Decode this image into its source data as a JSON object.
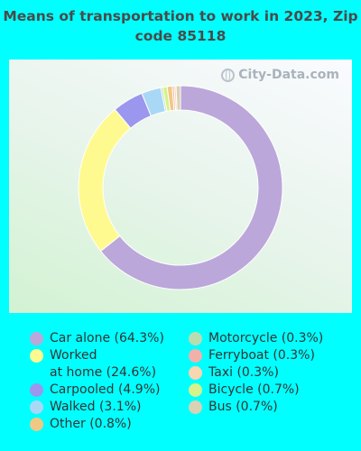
{
  "title": "Means of transportation to work in 2023, Zip code 85118",
  "watermark": "City-Data.com",
  "chart_data": {
    "type": "pie",
    "donut": true,
    "title": "Means of transportation to work in 2023, Zip code 85118",
    "slices": [
      {
        "label": "Car alone (64.3%)",
        "value": 64.3,
        "color": "#BBA7DA"
      },
      {
        "label": "Worked at home (24.6%)",
        "value": 24.6,
        "color": "#FFFA8F"
      },
      {
        "label": "Carpooled (4.9%)",
        "value": 4.9,
        "color": "#9B97EE"
      },
      {
        "label": "Walked (3.1%)",
        "value": 3.1,
        "color": "#A9D8F6"
      },
      {
        "label": "Motorcycle (0.3%)",
        "value": 0.3,
        "color": "#B9DDB0"
      },
      {
        "label": "Bicycle (0.7%)",
        "value": 0.7,
        "color": "#D6F28A"
      },
      {
        "label": "Other (0.8%)",
        "value": 0.8,
        "color": "#F1C882"
      },
      {
        "label": "Ferryboat (0.3%)",
        "value": 0.3,
        "color": "#F2B0AA"
      },
      {
        "label": "Taxi (0.3%)",
        "value": 0.3,
        "color": "#F7D6B0"
      },
      {
        "label": "Bus (0.7%)",
        "value": 0.7,
        "color": "#D9D2B3"
      }
    ]
  },
  "legend": {
    "left": [
      {
        "lines": [
          "Car alone (64.3%)"
        ],
        "color": "#BBA7DA"
      },
      {
        "lines": [
          "Worked",
          "at home (24.6%)"
        ],
        "color": "#FFFA8F"
      },
      {
        "lines": [
          "Carpooled (4.9%)"
        ],
        "color": "#9B97EE"
      },
      {
        "lines": [
          "Walked (3.1%)"
        ],
        "color": "#A9D8F6"
      },
      {
        "lines": [
          "Other (0.8%)"
        ],
        "color": "#F1C882"
      }
    ],
    "right": [
      {
        "lines": [
          "Motorcycle (0.3%)"
        ],
        "color": "#B9DDB0"
      },
      {
        "lines": [
          "Ferryboat (0.3%)"
        ],
        "color": "#F2B0AA"
      },
      {
        "lines": [
          "Taxi (0.3%)"
        ],
        "color": "#F7D6B0"
      },
      {
        "lines": [
          "Bicycle (0.7%)"
        ],
        "color": "#D6F28A"
      },
      {
        "lines": [
          "Bus (0.7%)"
        ],
        "color": "#D9D2B3"
      }
    ]
  }
}
